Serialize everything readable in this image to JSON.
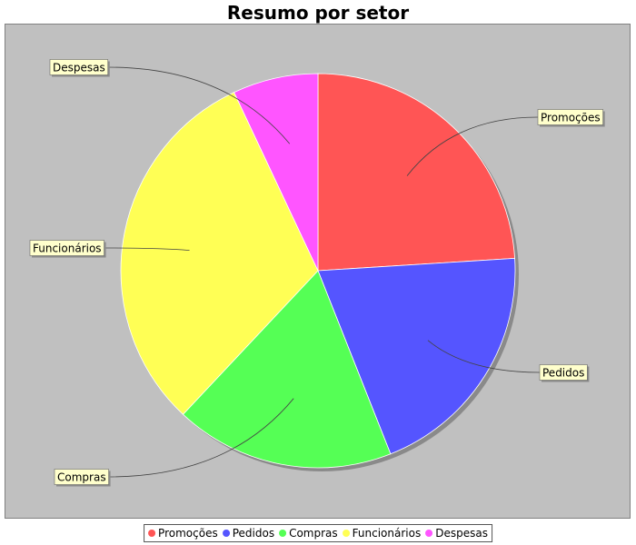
{
  "chart_data": {
    "type": "pie",
    "title": "Resumo por setor",
    "slices": [
      {
        "label": "Promoções",
        "value": 24,
        "color": "#ff5555"
      },
      {
        "label": "Pedidos",
        "value": 20,
        "color": "#5555ff"
      },
      {
        "label": "Compras",
        "value": 18,
        "color": "#55ff55"
      },
      {
        "label": "Funcionários",
        "value": 31,
        "color": "#ffff55"
      },
      {
        "label": "Despesas",
        "value": 7,
        "color": "#ff55ff"
      }
    ],
    "legend": "bottom",
    "colors": {
      "plot_background": "#c0c0c0",
      "label_background": "#ffffcc"
    }
  }
}
